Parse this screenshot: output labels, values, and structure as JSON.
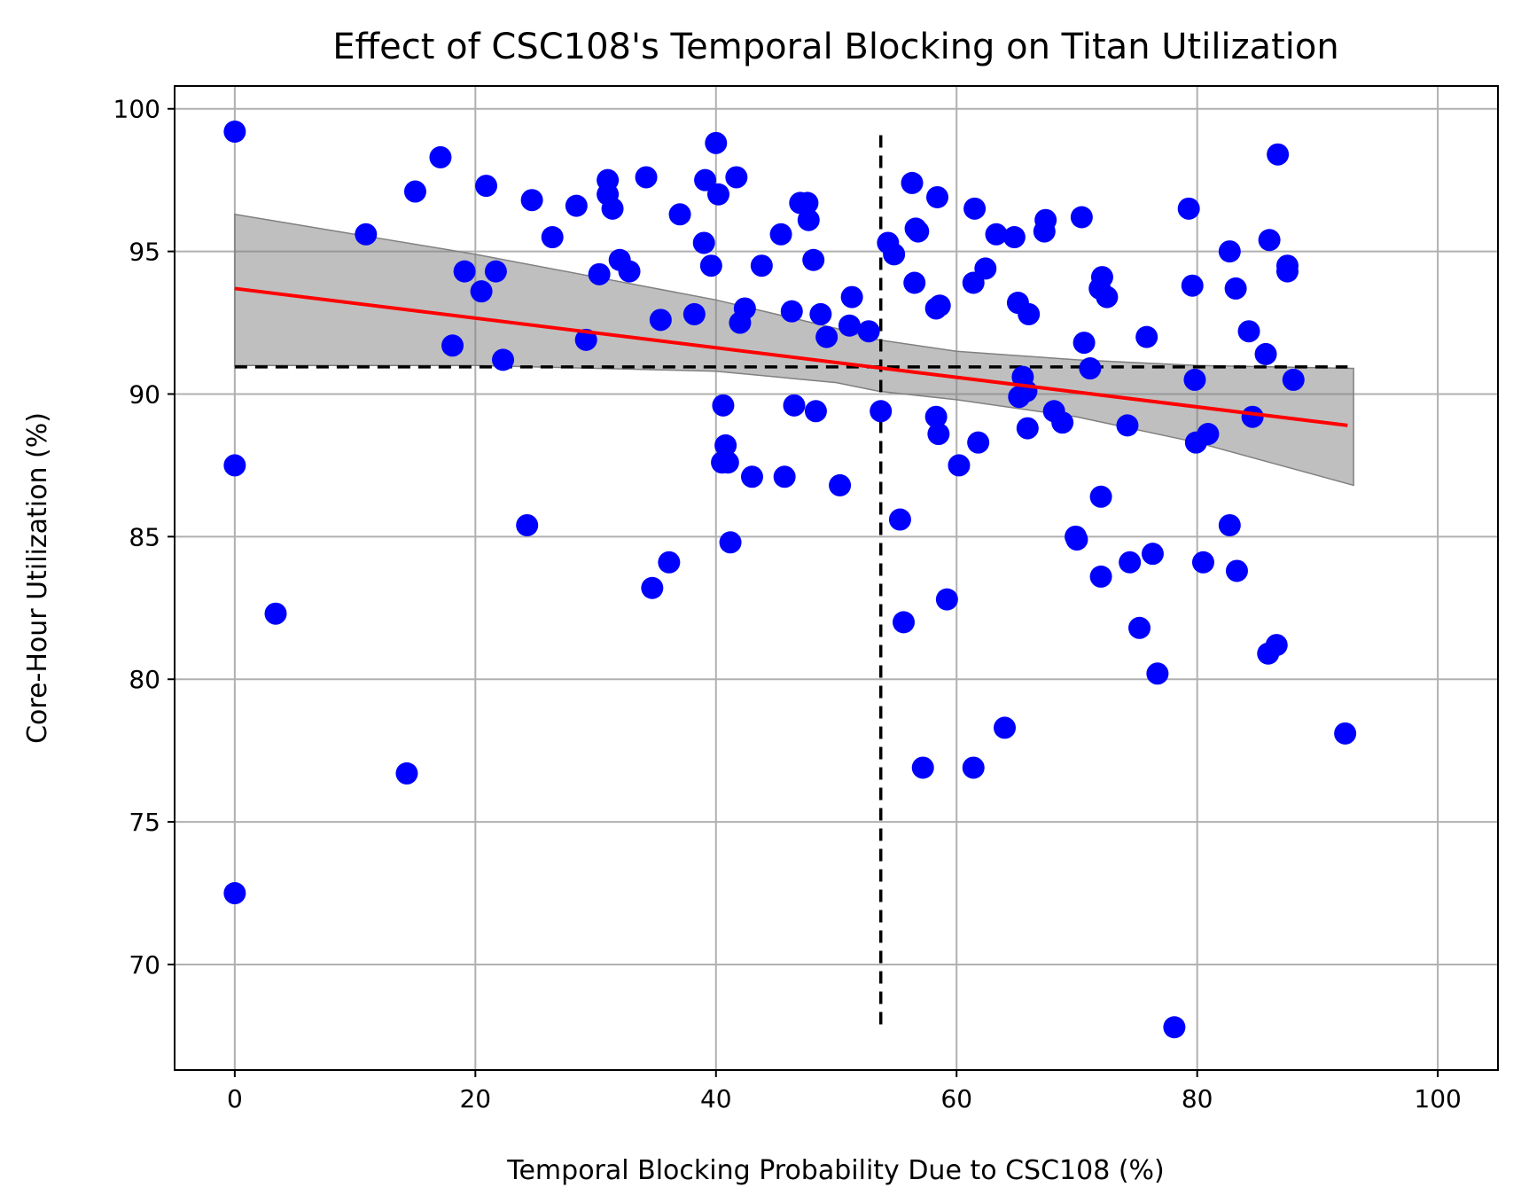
{
  "chart_data": {
    "type": "scatter",
    "title": "Effect of CSC108's Temporal Blocking on Titan Utilization",
    "xlabel": "Temporal Blocking Probability Due to CSC108 (%)",
    "ylabel": "Core-Hour Utilization (%)",
    "xlim": [
      -5,
      105
    ],
    "ylim": [
      66.3,
      100.8
    ],
    "xticks": [
      0,
      20,
      40,
      60,
      80,
      100
    ],
    "yticks": [
      70,
      75,
      80,
      85,
      90,
      95,
      100
    ],
    "grid": true,
    "colors": {
      "points": "#0000ff",
      "fit_line": "#ff0000",
      "band": "#808080",
      "reference_lines": "#000000",
      "grid": "#b0b0b0"
    },
    "points": [
      [
        0,
        99.2
      ],
      [
        0,
        87.5
      ],
      [
        0,
        72.5
      ],
      [
        3.4,
        82.3
      ],
      [
        10.9,
        95.6
      ],
      [
        14.3,
        76.7
      ],
      [
        15.0,
        97.1
      ],
      [
        17.1,
        98.3
      ],
      [
        18.1,
        91.7
      ],
      [
        19.1,
        94.3
      ],
      [
        20.5,
        93.6
      ],
      [
        20.9,
        97.3
      ],
      [
        21.7,
        94.3
      ],
      [
        22.3,
        91.2
      ],
      [
        24.3,
        85.4
      ],
      [
        24.7,
        96.8
      ],
      [
        26.4,
        95.5
      ],
      [
        28.4,
        96.6
      ],
      [
        29.2,
        91.9
      ],
      [
        30.3,
        94.2
      ],
      [
        31.0,
        97.0
      ],
      [
        31.0,
        97.5
      ],
      [
        31.4,
        96.5
      ],
      [
        32.0,
        94.7
      ],
      [
        32.8,
        94.3
      ],
      [
        34.2,
        97.6
      ],
      [
        34.7,
        83.2
      ],
      [
        35.4,
        92.6
      ],
      [
        36.1,
        84.1
      ],
      [
        37.0,
        96.3
      ],
      [
        38.2,
        92.8
      ],
      [
        39.0,
        95.3
      ],
      [
        39.1,
        97.5
      ],
      [
        39.6,
        94.5
      ],
      [
        40.0,
        98.8
      ],
      [
        40.2,
        97.0
      ],
      [
        40.5,
        87.6
      ],
      [
        40.6,
        89.6
      ],
      [
        40.8,
        88.2
      ],
      [
        41.0,
        87.6
      ],
      [
        41.2,
        84.8
      ],
      [
        41.7,
        97.6
      ],
      [
        42.0,
        92.5
      ],
      [
        42.4,
        93.0
      ],
      [
        43.0,
        87.1
      ],
      [
        43.8,
        94.5
      ],
      [
        45.4,
        95.6
      ],
      [
        45.7,
        87.1
      ],
      [
        46.3,
        92.9
      ],
      [
        46.5,
        89.6
      ],
      [
        47.0,
        96.7
      ],
      [
        47.6,
        96.7
      ],
      [
        47.7,
        96.1
      ],
      [
        48.1,
        94.7
      ],
      [
        48.3,
        89.4
      ],
      [
        48.7,
        92.8
      ],
      [
        49.2,
        92.0
      ],
      [
        50.3,
        86.8
      ],
      [
        51.1,
        92.4
      ],
      [
        51.3,
        93.4
      ],
      [
        52.7,
        92.2
      ],
      [
        53.7,
        89.4
      ],
      [
        54.3,
        95.3
      ],
      [
        54.8,
        94.9
      ],
      [
        55.3,
        85.6
      ],
      [
        55.6,
        82.0
      ],
      [
        56.3,
        97.4
      ],
      [
        56.5,
        93.9
      ],
      [
        56.6,
        95.8
      ],
      [
        56.8,
        95.7
      ],
      [
        57.2,
        76.9
      ],
      [
        58.3,
        93.0
      ],
      [
        58.3,
        89.2
      ],
      [
        58.4,
        96.9
      ],
      [
        58.5,
        88.6
      ],
      [
        58.6,
        93.1
      ],
      [
        59.2,
        82.8
      ],
      [
        60.2,
        87.5
      ],
      [
        61.4,
        76.9
      ],
      [
        61.4,
        93.9
      ],
      [
        61.5,
        96.5
      ],
      [
        61.8,
        88.3
      ],
      [
        62.4,
        94.4
      ],
      [
        63.3,
        95.6
      ],
      [
        64.0,
        78.3
      ],
      [
        64.8,
        95.5
      ],
      [
        65.1,
        93.2
      ],
      [
        65.2,
        89.9
      ],
      [
        65.5,
        90.6
      ],
      [
        65.8,
        90.1
      ],
      [
        65.9,
        88.8
      ],
      [
        66.0,
        92.8
      ],
      [
        67.3,
        95.7
      ],
      [
        67.4,
        96.1
      ],
      [
        68.1,
        89.4
      ],
      [
        68.8,
        89.0
      ],
      [
        69.9,
        85.0
      ],
      [
        70.0,
        84.9
      ],
      [
        70.4,
        96.2
      ],
      [
        70.6,
        91.8
      ],
      [
        71.1,
        90.9
      ],
      [
        71.9,
        93.7
      ],
      [
        72.0,
        83.6
      ],
      [
        72.0,
        86.4
      ],
      [
        72.1,
        94.1
      ],
      [
        72.5,
        93.4
      ],
      [
        74.2,
        88.9
      ],
      [
        74.4,
        84.1
      ],
      [
        75.2,
        81.8
      ],
      [
        75.8,
        92.0
      ],
      [
        76.3,
        84.4
      ],
      [
        76.7,
        80.2
      ],
      [
        78.1,
        67.8
      ],
      [
        79.3,
        96.5
      ],
      [
        79.6,
        93.8
      ],
      [
        79.8,
        90.5
      ],
      [
        79.9,
        88.3
      ],
      [
        80.5,
        84.1
      ],
      [
        80.9,
        88.6
      ],
      [
        82.7,
        85.4
      ],
      [
        82.7,
        95.0
      ],
      [
        83.2,
        93.7
      ],
      [
        83.3,
        83.8
      ],
      [
        84.3,
        92.2
      ],
      [
        84.6,
        89.2
      ],
      [
        85.7,
        91.4
      ],
      [
        85.9,
        80.9
      ],
      [
        86.0,
        95.4
      ],
      [
        86.6,
        81.2
      ],
      [
        86.7,
        98.4
      ],
      [
        87.5,
        94.3
      ],
      [
        87.5,
        94.5
      ],
      [
        88.0,
        90.5
      ],
      [
        92.3,
        78.1
      ]
    ],
    "fit_line": {
      "x": [
        0,
        92.5
      ],
      "y": [
        93.7,
        88.9
      ]
    },
    "confidence_band": {
      "x": [
        0,
        10,
        20,
        30,
        40,
        50,
        53.5,
        60,
        70,
        80,
        93
      ],
      "upper": [
        96.3,
        95.6,
        94.9,
        94.1,
        93.3,
        92.3,
        91.9,
        91.5,
        91.2,
        91.0,
        90.9
      ],
      "lower": [
        91.0,
        91.0,
        91.0,
        90.9,
        90.8,
        90.4,
        90.1,
        89.8,
        89.2,
        88.3,
        86.8
      ]
    },
    "reference_lines": {
      "horizontal_y": 90.95,
      "horizontal_x_range": [
        0,
        92.5
      ],
      "vertical_x": 53.7,
      "vertical_y_range": [
        67.9,
        99.3
      ]
    }
  }
}
